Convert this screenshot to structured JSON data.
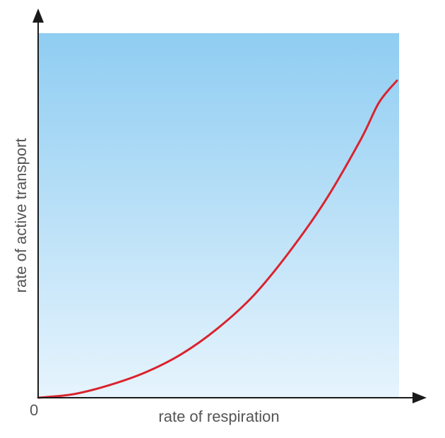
{
  "chart_data": {
    "type": "line",
    "title": "",
    "xlabel": "rate of respiration",
    "ylabel": "rate of active transport",
    "origin_label": "0",
    "xlim": [
      0,
      1
    ],
    "ylim": [
      0,
      1
    ],
    "grid": false,
    "legend": "none",
    "colors": {
      "curve": "#d9232e",
      "background_top": "#8fcdf2",
      "background_bottom": "#e6f4fd",
      "axis": "#1a1a1a"
    },
    "series": [
      {
        "x": [
          0,
          0.1,
          0.2,
          0.3,
          0.4,
          0.5,
          0.6,
          0.7,
          0.8,
          0.9,
          0.95,
          1.0
        ],
        "y": [
          0,
          0.01,
          0.035,
          0.07,
          0.12,
          0.19,
          0.28,
          0.4,
          0.54,
          0.71,
          0.81,
          0.87
        ]
      }
    ]
  }
}
